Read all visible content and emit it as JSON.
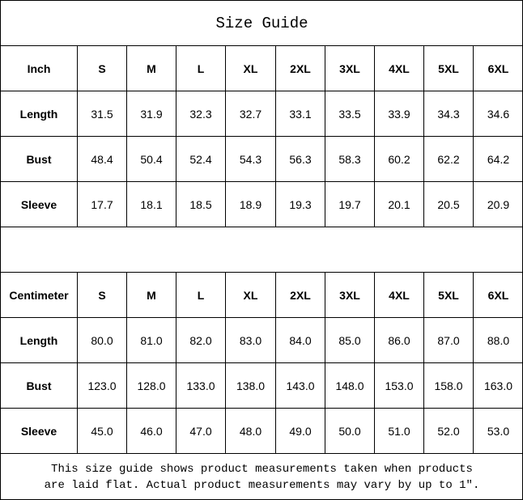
{
  "title": "Size Guide",
  "tables": [
    {
      "unit": "Inch",
      "sizes": [
        "S",
        "M",
        "L",
        "XL",
        "2XL",
        "3XL",
        "4XL",
        "5XL",
        "6XL"
      ],
      "rows": [
        {
          "label": "Length",
          "values": [
            "31.5",
            "31.9",
            "32.3",
            "32.7",
            "33.1",
            "33.5",
            "33.9",
            "34.3",
            "34.6"
          ]
        },
        {
          "label": "Bust",
          "values": [
            "48.4",
            "50.4",
            "52.4",
            "54.3",
            "56.3",
            "58.3",
            "60.2",
            "62.2",
            "64.2"
          ]
        },
        {
          "label": "Sleeve",
          "values": [
            "17.7",
            "18.1",
            "18.5",
            "18.9",
            "19.3",
            "19.7",
            "20.1",
            "20.5",
            "20.9"
          ]
        }
      ]
    },
    {
      "unit": "Centimeter",
      "sizes": [
        "S",
        "M",
        "L",
        "XL",
        "2XL",
        "3XL",
        "4XL",
        "5XL",
        "6XL"
      ],
      "rows": [
        {
          "label": "Length",
          "values": [
            "80.0",
            "81.0",
            "82.0",
            "83.0",
            "84.0",
            "85.0",
            "86.0",
            "87.0",
            "88.0"
          ]
        },
        {
          "label": "Bust",
          "values": [
            "123.0",
            "128.0",
            "133.0",
            "138.0",
            "143.0",
            "148.0",
            "153.0",
            "158.0",
            "163.0"
          ]
        },
        {
          "label": "Sleeve",
          "values": [
            "45.0",
            "46.0",
            "47.0",
            "48.0",
            "49.0",
            "50.0",
            "51.0",
            "52.0",
            "53.0"
          ]
        }
      ]
    }
  ],
  "note": {
    "line1": "This size guide shows product measurements taken when products",
    "line2": "are laid flat. Actual product measurements may vary by up to 1″."
  }
}
